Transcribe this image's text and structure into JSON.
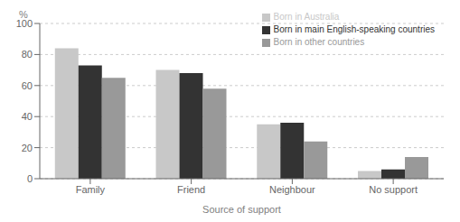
{
  "chart_data": {
    "type": "bar",
    "categories": [
      "Family",
      "Friend",
      "Neighbour",
      "No support"
    ],
    "series": [
      {
        "name": "Born in Australia",
        "color": "#c8c8c8",
        "values": [
          84,
          70,
          35,
          5
        ]
      },
      {
        "name": "Born in main English-speaking countries",
        "color": "#333333",
        "values": [
          73,
          68,
          36,
          6
        ]
      },
      {
        "name": "Born in other countries",
        "color": "#999999",
        "values": [
          65,
          58,
          24,
          14
        ]
      }
    ],
    "xlabel": "Source of support",
    "ylabel": "%",
    "ylim": [
      0,
      100
    ],
    "yticks": [
      0,
      20,
      40,
      60,
      80,
      100
    ],
    "grid": true,
    "legend": "upper right"
  }
}
